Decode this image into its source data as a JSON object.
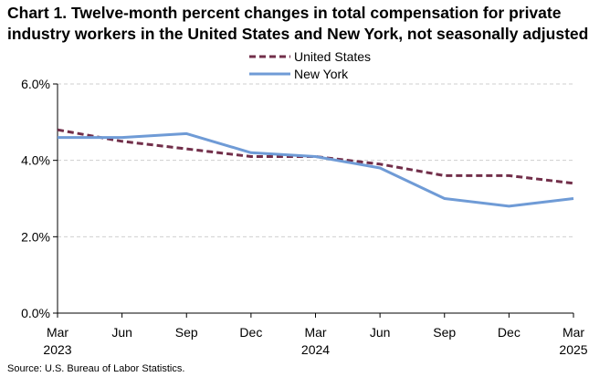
{
  "chart_data": {
    "type": "line",
    "title": "Chart 1. Twelve-month percent changes in total compensation for private industry workers in the United States and New York, not seasonally adjusted",
    "source": "Source: U.S. Bureau of Labor Statistics.",
    "xlabel": "",
    "ylabel": "",
    "x": [
      "Mar 2023",
      "Jun 2023",
      "Sep 2023",
      "Dec 2023",
      "Mar 2024",
      "Jun 2024",
      "Sep 2024",
      "Dec 2024",
      "Mar 2025"
    ],
    "x_tick_labels": [
      {
        "month": "Mar",
        "year": "2023"
      },
      {
        "month": "Jun",
        "year": ""
      },
      {
        "month": "Sep",
        "year": ""
      },
      {
        "month": "Dec",
        "year": ""
      },
      {
        "month": "Mar",
        "year": "2024"
      },
      {
        "month": "Jun",
        "year": ""
      },
      {
        "month": "Sep",
        "year": ""
      },
      {
        "month": "Dec",
        "year": ""
      },
      {
        "month": "Mar",
        "year": "2025"
      }
    ],
    "y_ticks": [
      0,
      2,
      4,
      6
    ],
    "y_tick_labels": [
      "0.0%",
      "2.0%",
      "4.0%",
      "6.0%"
    ],
    "ylim": [
      0,
      6
    ],
    "grid": "horizontal dashed",
    "legend_position": "top-center",
    "series": [
      {
        "name": "United States",
        "color": "#722F4A",
        "style": "dashed",
        "values": [
          4.8,
          4.5,
          4.3,
          4.1,
          4.1,
          3.9,
          3.6,
          3.6,
          3.4
        ]
      },
      {
        "name": "New York",
        "color": "#6F9BD6",
        "style": "solid",
        "values": [
          4.6,
          4.6,
          4.7,
          4.2,
          4.1,
          3.8,
          3.0,
          2.8,
          3.0
        ]
      }
    ]
  }
}
